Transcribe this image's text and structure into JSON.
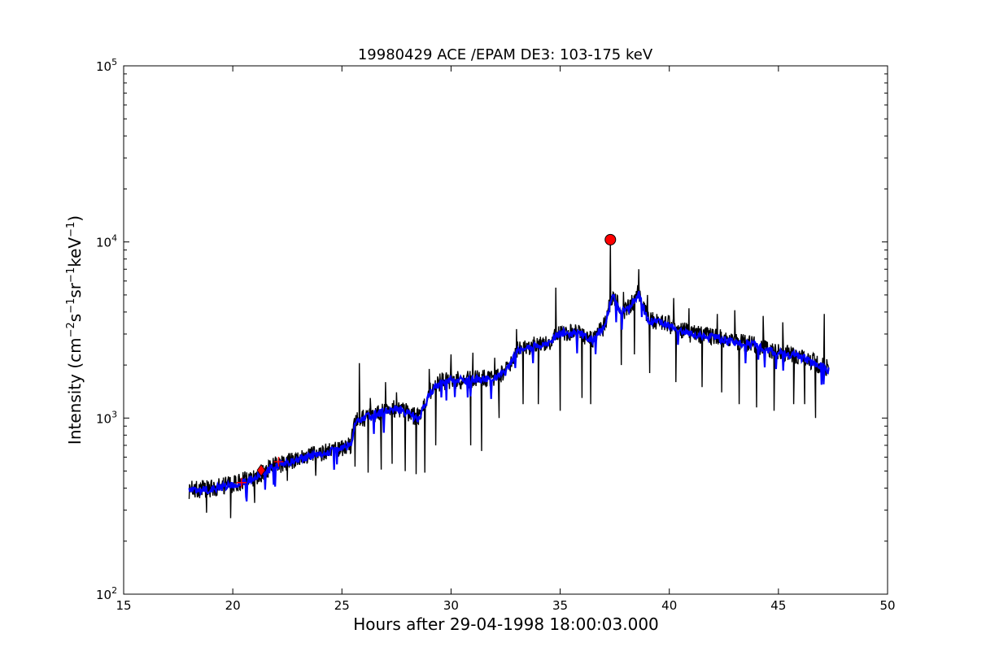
{
  "chart_data": {
    "type": "line",
    "title": "19980429 ACE /EPAM DE3: 103-175 keV",
    "xlabel": "Hours after 29-04-1998 18:00:03.000",
    "ylabel": {
      "prefix": "Intensity (cm",
      "parts": [
        {
          "t": "−2",
          "sup": true
        },
        {
          "t": "s",
          "sup": false
        },
        {
          "t": "−1",
          "sup": true
        },
        {
          "t": "sr",
          "sup": false
        },
        {
          "t": "−1",
          "sup": true
        },
        {
          "t": "keV",
          "sup": false
        },
        {
          "t": "−1",
          "sup": true
        },
        {
          "t": ")",
          "sup": false
        }
      ]
    },
    "xlim": [
      15,
      50
    ],
    "ylim": [
      100,
      100000
    ],
    "yscale": "log",
    "grid": false,
    "legend": "none",
    "x_ticks": [
      15,
      20,
      25,
      30,
      35,
      40,
      45,
      50
    ],
    "x_tick_labels": [
      "15",
      "20",
      "25",
      "30",
      "35",
      "40",
      "45",
      "50"
    ],
    "y_ticks": [
      {
        "value": 100,
        "base": "10",
        "exp": "2"
      },
      {
        "value": 1000,
        "base": "10",
        "exp": "3"
      },
      {
        "value": 10000,
        "base": "10",
        "exp": "4"
      },
      {
        "value": 100000,
        "base": "10",
        "exp": "5"
      }
    ],
    "x_range": [
      18.0,
      47.3
    ],
    "series": [
      {
        "role": "raw-intensity",
        "color": "#000000",
        "trend": [
          [
            18.0,
            390
          ],
          [
            19.0,
            400
          ],
          [
            20.0,
            420
          ],
          [
            21.0,
            460
          ],
          [
            21.5,
            500
          ],
          [
            22.0,
            540
          ],
          [
            23.0,
            590
          ],
          [
            24.0,
            630
          ],
          [
            25.0,
            680
          ],
          [
            25.4,
            700
          ],
          [
            25.6,
            950
          ],
          [
            26.0,
            1000
          ],
          [
            27.0,
            1100
          ],
          [
            27.5,
            1150
          ],
          [
            28.0,
            1080
          ],
          [
            28.5,
            1000
          ],
          [
            28.8,
            1200
          ],
          [
            29.0,
            1400
          ],
          [
            29.5,
            1600
          ],
          [
            30.0,
            1650
          ],
          [
            31.0,
            1650
          ],
          [
            32.0,
            1700
          ],
          [
            32.5,
            1850
          ],
          [
            33.0,
            2400
          ],
          [
            34.0,
            2650
          ],
          [
            34.5,
            2700
          ],
          [
            35.0,
            3100
          ],
          [
            36.0,
            3000
          ],
          [
            36.5,
            2800
          ],
          [
            37.0,
            3300
          ],
          [
            37.4,
            5000
          ],
          [
            37.8,
            4000
          ],
          [
            38.2,
            4300
          ],
          [
            38.6,
            5200
          ],
          [
            39.0,
            3600
          ],
          [
            40.0,
            3400
          ],
          [
            41.0,
            3000
          ],
          [
            42.0,
            2900
          ],
          [
            43.0,
            2700
          ],
          [
            44.0,
            2600
          ],
          [
            45.0,
            2350
          ],
          [
            46.0,
            2250
          ],
          [
            47.3,
            1900
          ]
        ],
        "spikes": [
          [
            25.8,
            2050
          ],
          [
            26.3,
            1300
          ],
          [
            27.0,
            1600
          ],
          [
            27.5,
            1400
          ],
          [
            29.0,
            1900
          ],
          [
            30.0,
            2300
          ],
          [
            31.0,
            2350
          ],
          [
            32.0,
            2200
          ],
          [
            33.0,
            3200
          ],
          [
            34.0,
            3700
          ],
          [
            34.8,
            5500
          ],
          [
            35.7,
            3400
          ],
          [
            36.4,
            4300
          ],
          [
            37.3,
            10300
          ],
          [
            37.9,
            5200
          ],
          [
            38.6,
            7000
          ],
          [
            39.0,
            5000
          ],
          [
            40.2,
            4800
          ],
          [
            40.9,
            4200
          ],
          [
            42.2,
            3900
          ],
          [
            43.0,
            4100
          ],
          [
            44.3,
            3800
          ],
          [
            45.2,
            3500
          ],
          [
            46.2,
            3700
          ],
          [
            47.1,
            3900
          ]
        ],
        "dips": [
          [
            18.8,
            290
          ],
          [
            19.9,
            270
          ],
          [
            21.0,
            330
          ],
          [
            22.5,
            440
          ],
          [
            23.8,
            470
          ],
          [
            25.6,
            530
          ],
          [
            26.2,
            490
          ],
          [
            26.8,
            510
          ],
          [
            27.3,
            550
          ],
          [
            27.9,
            500
          ],
          [
            28.4,
            480
          ],
          [
            28.8,
            490
          ],
          [
            29.3,
            700
          ],
          [
            30.9,
            700
          ],
          [
            31.4,
            650
          ],
          [
            32.2,
            1000
          ],
          [
            33.3,
            1200
          ],
          [
            34.0,
            1200
          ],
          [
            35.0,
            1100
          ],
          [
            36.0,
            1300
          ],
          [
            36.4,
            1200
          ],
          [
            37.8,
            2000
          ],
          [
            38.4,
            2300
          ],
          [
            39.1,
            1800
          ],
          [
            40.3,
            1600
          ],
          [
            41.5,
            1500
          ],
          [
            42.4,
            1400
          ],
          [
            43.2,
            1200
          ],
          [
            44.0,
            1150
          ],
          [
            44.8,
            1100
          ],
          [
            45.7,
            1200
          ],
          [
            46.2,
            1200
          ],
          [
            46.7,
            1000
          ]
        ]
      },
      {
        "role": "smoothed-intensity",
        "color": "#0000ff",
        "trend": [
          [
            18.0,
            385
          ],
          [
            19.0,
            395
          ],
          [
            20.0,
            415
          ],
          [
            21.0,
            455
          ],
          [
            21.5,
            495
          ],
          [
            22.0,
            535
          ],
          [
            23.0,
            585
          ],
          [
            24.0,
            625
          ],
          [
            25.0,
            675
          ],
          [
            25.4,
            695
          ],
          [
            25.6,
            940
          ],
          [
            26.0,
            1000
          ],
          [
            27.0,
            1090
          ],
          [
            27.5,
            1140
          ],
          [
            28.0,
            1070
          ],
          [
            28.5,
            990
          ],
          [
            28.8,
            1180
          ],
          [
            29.0,
            1380
          ],
          [
            29.5,
            1580
          ],
          [
            30.0,
            1640
          ],
          [
            31.0,
            1640
          ],
          [
            32.0,
            1690
          ],
          [
            32.5,
            1830
          ],
          [
            33.0,
            2380
          ],
          [
            34.0,
            2620
          ],
          [
            34.5,
            2680
          ],
          [
            35.0,
            3050
          ],
          [
            36.0,
            2980
          ],
          [
            36.5,
            2780
          ],
          [
            37.0,
            3300
          ],
          [
            37.4,
            5000
          ],
          [
            37.8,
            3950
          ],
          [
            38.2,
            4250
          ],
          [
            38.6,
            5100
          ],
          [
            39.0,
            3580
          ],
          [
            40.0,
            3380
          ],
          [
            41.0,
            2980
          ],
          [
            42.0,
            2880
          ],
          [
            43.0,
            2680
          ],
          [
            44.0,
            2580
          ],
          [
            45.0,
            2330
          ],
          [
            46.0,
            2230
          ],
          [
            47.3,
            1880
          ]
        ]
      }
    ],
    "markers": [
      {
        "role": "peak",
        "shape": "circle",
        "color": "#ff0000",
        "x": 37.3,
        "y": 10300
      },
      {
        "role": "onset",
        "shape": "diamond",
        "color": "#ff0000",
        "x": 21.3,
        "y": 505
      },
      {
        "role": "fit-point",
        "shape": "plus",
        "color": "#ff0000",
        "x": 20.4,
        "y": 430
      },
      {
        "role": "fit-point",
        "shape": "plus",
        "color": "#ff0000",
        "x": 22.1,
        "y": 565
      }
    ]
  }
}
